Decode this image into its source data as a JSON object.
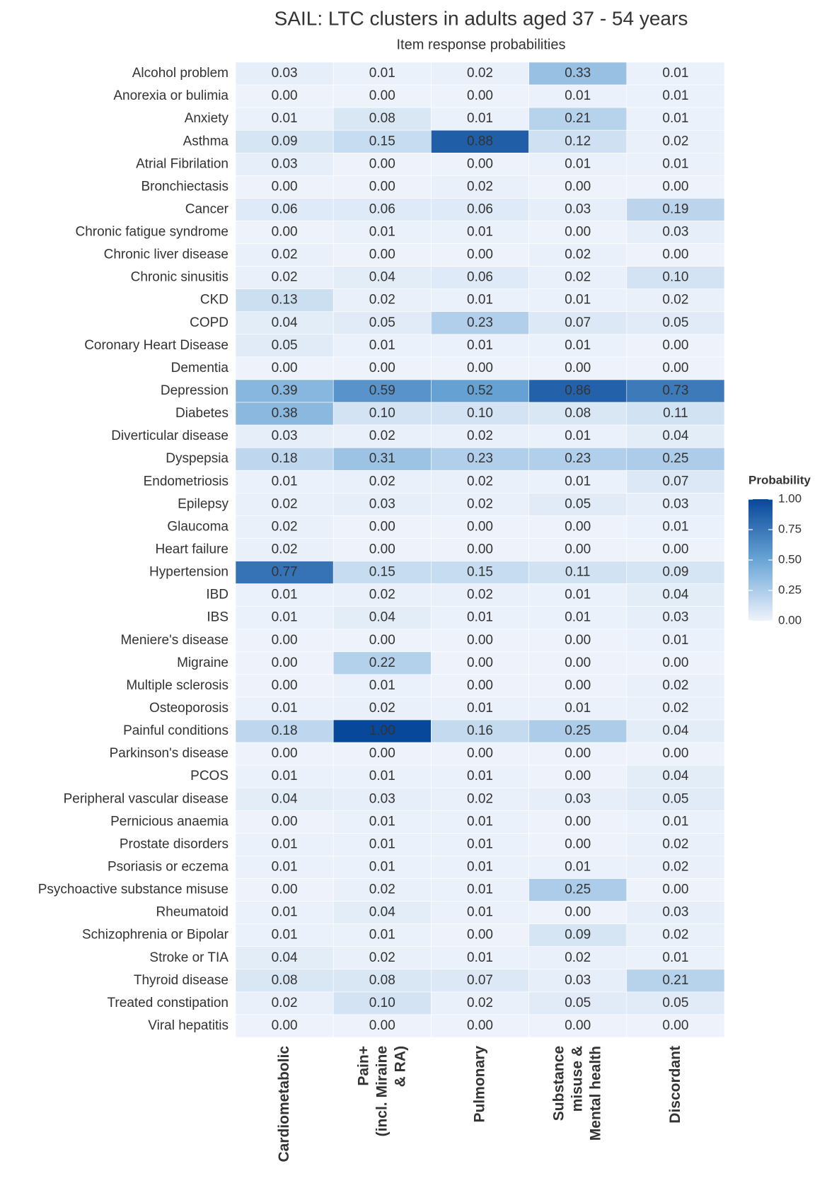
{
  "chart_data": {
    "type": "heatmap",
    "title": "SAIL: LTC clusters in adults aged 37 - 54 years",
    "subtitle": "Item response probabilities",
    "legend_title": "Probability",
    "colorscale": [
      "#eef3fb",
      "#6aa5d6",
      "#08489a"
    ],
    "clim": [
      0,
      1
    ],
    "cticks": [
      {
        "value": 0,
        "label": "0.00"
      },
      {
        "value": 0.25,
        "label": "0.25"
      },
      {
        "value": 0.5,
        "label": "0.50"
      },
      {
        "value": 0.75,
        "label": "0.75"
      },
      {
        "value": 1,
        "label": "1.00"
      }
    ],
    "rows": [
      "Alcohol problem",
      "Anorexia or bulimia",
      "Anxiety",
      "Asthma",
      "Atrial Fibrilation",
      "Bronchiectasis",
      "Cancer",
      "Chronic fatigue syndrome",
      "Chronic liver disease",
      "Chronic sinusitis",
      "CKD",
      "COPD",
      "Coronary Heart Disease",
      "Dementia",
      "Depression",
      "Diabetes",
      "Diverticular disease",
      "Dyspepsia",
      "Endometriosis",
      "Epilepsy",
      "Glaucoma",
      "Heart failure",
      "Hypertension",
      "IBD",
      "IBS",
      "Meniere's disease",
      "Migraine",
      "Multiple sclerosis",
      "Osteoporosis",
      "Painful conditions",
      "Parkinson's disease",
      "PCOS",
      "Peripheral vascular disease",
      "Pernicious anaemia",
      "Prostate disorders",
      "Psoriasis or eczema",
      "Psychoactive substance misuse",
      "Rheumatoid",
      "Schizophrenia or Bipolar",
      "Stroke or TIA",
      "Thyroid disease",
      "Treated constipation",
      "Viral hepatitis"
    ],
    "series": [
      {
        "name": "Cardiometabolic",
        "values": [
          0.03,
          0,
          0.01,
          0.09,
          0.03,
          0,
          0.06,
          0,
          0.02,
          0.02,
          0.13,
          0.04,
          0.05,
          0,
          0.39,
          0.38,
          0.03,
          0.18,
          0.01,
          0.02,
          0.02,
          0.02,
          0.77,
          0.01,
          0.01,
          0,
          0,
          0,
          0.01,
          0.18,
          0,
          0.01,
          0.04,
          0,
          0.01,
          0.01,
          0,
          0.01,
          0.01,
          0.04,
          0.08,
          0.02,
          0
        ],
        "value_labels": [
          "0.03",
          "0.00",
          "0.01",
          "0.09",
          "0.03",
          "0.00",
          "0.06",
          "0.00",
          "0.02",
          "0.02",
          "0.13",
          "0.04",
          "0.05",
          "0.00",
          "0.39",
          "0.38",
          "0.03",
          "0.18",
          "0.01",
          "0.02",
          "0.02",
          "0.02",
          "0.77",
          "0.01",
          "0.01",
          "0.00",
          "0.00",
          "0.00",
          "0.01",
          "0.18",
          "0.00",
          "0.01",
          "0.04",
          "0.00",
          "0.01",
          "0.01",
          "0.00",
          "0.01",
          "0.01",
          "0.04",
          "0.08",
          "0.02",
          "0.00"
        ]
      },
      {
        "name": "Pain+\n(incl. Miraine\n& RA)",
        "values": [
          0.01,
          0,
          0.08,
          0.15,
          0,
          0,
          0.06,
          0.01,
          0,
          0.04,
          0.02,
          0.05,
          0.01,
          0,
          0.59,
          0.1,
          0.02,
          0.31,
          0.02,
          0.03,
          0,
          0,
          0.15,
          0.02,
          0.04,
          0,
          0.22,
          0.01,
          0.02,
          1,
          0,
          0.01,
          0.03,
          0.01,
          0.01,
          0.01,
          0.02,
          0.04,
          0.01,
          0.02,
          0.08,
          0.1,
          0
        ],
        "value_labels": [
          "0.01",
          "0.00",
          "0.08",
          "0.15",
          "0.00",
          "0.00",
          "0.06",
          "0.01",
          "0.00",
          "0.04",
          "0.02",
          "0.05",
          "0.01",
          "0.00",
          "0.59",
          "0.10",
          "0.02",
          "0.31",
          "0.02",
          "0.03",
          "0.00",
          "0.00",
          "0.15",
          "0.02",
          "0.04",
          "0.00",
          "0.22",
          "0.01",
          "0.02",
          "1.00",
          "0.00",
          "0.01",
          "0.03",
          "0.01",
          "0.01",
          "0.01",
          "0.02",
          "0.04",
          "0.01",
          "0.02",
          "0.08",
          "0.10",
          "0.00"
        ]
      },
      {
        "name": "Pulmonary",
        "values": [
          0.02,
          0,
          0.01,
          0.88,
          0,
          0.02,
          0.06,
          0.01,
          0,
          0.06,
          0.01,
          0.23,
          0.01,
          0,
          0.52,
          0.1,
          0.02,
          0.23,
          0.02,
          0.02,
          0,
          0,
          0.15,
          0.02,
          0.01,
          0,
          0,
          0,
          0.01,
          0.16,
          0,
          0.01,
          0.02,
          0.01,
          0.01,
          0.01,
          0.01,
          0.01,
          0,
          0.01,
          0.07,
          0.02,
          0
        ],
        "value_labels": [
          "0.02",
          "0.00",
          "0.01",
          "0.88",
          "0.00",
          "0.02",
          "0.06",
          "0.01",
          "0.00",
          "0.06",
          "0.01",
          "0.23",
          "0.01",
          "0.00",
          "0.52",
          "0.10",
          "0.02",
          "0.23",
          "0.02",
          "0.02",
          "0.00",
          "0.00",
          "0.15",
          "0.02",
          "0.01",
          "0.00",
          "0.00",
          "0.00",
          "0.01",
          "0.16",
          "0.00",
          "0.01",
          "0.02",
          "0.01",
          "0.01",
          "0.01",
          "0.01",
          "0.01",
          "0.00",
          "0.01",
          "0.07",
          "0.02",
          "0.00"
        ]
      },
      {
        "name": "Substance\nmisuse &\nMental health",
        "values": [
          0.33,
          0.01,
          0.21,
          0.12,
          0.01,
          0,
          0.03,
          0,
          0.02,
          0.02,
          0.01,
          0.07,
          0.01,
          0,
          0.86,
          0.08,
          0.01,
          0.23,
          0.01,
          0.05,
          0,
          0,
          0.11,
          0.01,
          0.01,
          0,
          0,
          0,
          0.01,
          0.25,
          0,
          0,
          0.03,
          0,
          0,
          0.01,
          0.25,
          0,
          0.09,
          0.02,
          0.03,
          0.05,
          0
        ],
        "value_labels": [
          "0.33",
          "0.01",
          "0.21",
          "0.12",
          "0.01",
          "0.00",
          "0.03",
          "0.00",
          "0.02",
          "0.02",
          "0.01",
          "0.07",
          "0.01",
          "0.00",
          "0.86",
          "0.08",
          "0.01",
          "0.23",
          "0.01",
          "0.05",
          "0.00",
          "0.00",
          "0.11",
          "0.01",
          "0.01",
          "0.00",
          "0.00",
          "0.00",
          "0.01",
          "0.25",
          "0.00",
          "0.00",
          "0.03",
          "0.00",
          "0.00",
          "0.01",
          "0.25",
          "0.00",
          "0.09",
          "0.02",
          "0.03",
          "0.05",
          "0.00"
        ]
      },
      {
        "name": "Discordant",
        "values": [
          0.01,
          0.01,
          0.01,
          0.02,
          0.01,
          0,
          0.19,
          0.03,
          0,
          0.1,
          0.02,
          0.05,
          0,
          0,
          0.73,
          0.11,
          0.04,
          0.25,
          0.07,
          0.03,
          0.01,
          0,
          0.09,
          0.04,
          0.03,
          0.01,
          0,
          0.02,
          0.02,
          0.04,
          0,
          0.04,
          0.05,
          0.01,
          0.02,
          0.02,
          0,
          0.03,
          0.02,
          0.01,
          0.21,
          0.05,
          0
        ],
        "value_labels": [
          "0.01",
          "0.01",
          "0.01",
          "0.02",
          "0.01",
          "0.00",
          "0.19",
          "0.03",
          "0.00",
          "0.10",
          "0.02",
          "0.05",
          "0.00",
          "0.00",
          "0.73",
          "0.11",
          "0.04",
          "0.25",
          "0.07",
          "0.03",
          "0.01",
          "0.00",
          "0.09",
          "0.04",
          "0.03",
          "0.01",
          "0.00",
          "0.02",
          "0.02",
          "0.04",
          "0.00",
          "0.04",
          "0.05",
          "0.01",
          "0.02",
          "0.02",
          "0.00",
          "0.03",
          "0.02",
          "0.01",
          "0.21",
          "0.05",
          "0.00"
        ]
      }
    ]
  }
}
